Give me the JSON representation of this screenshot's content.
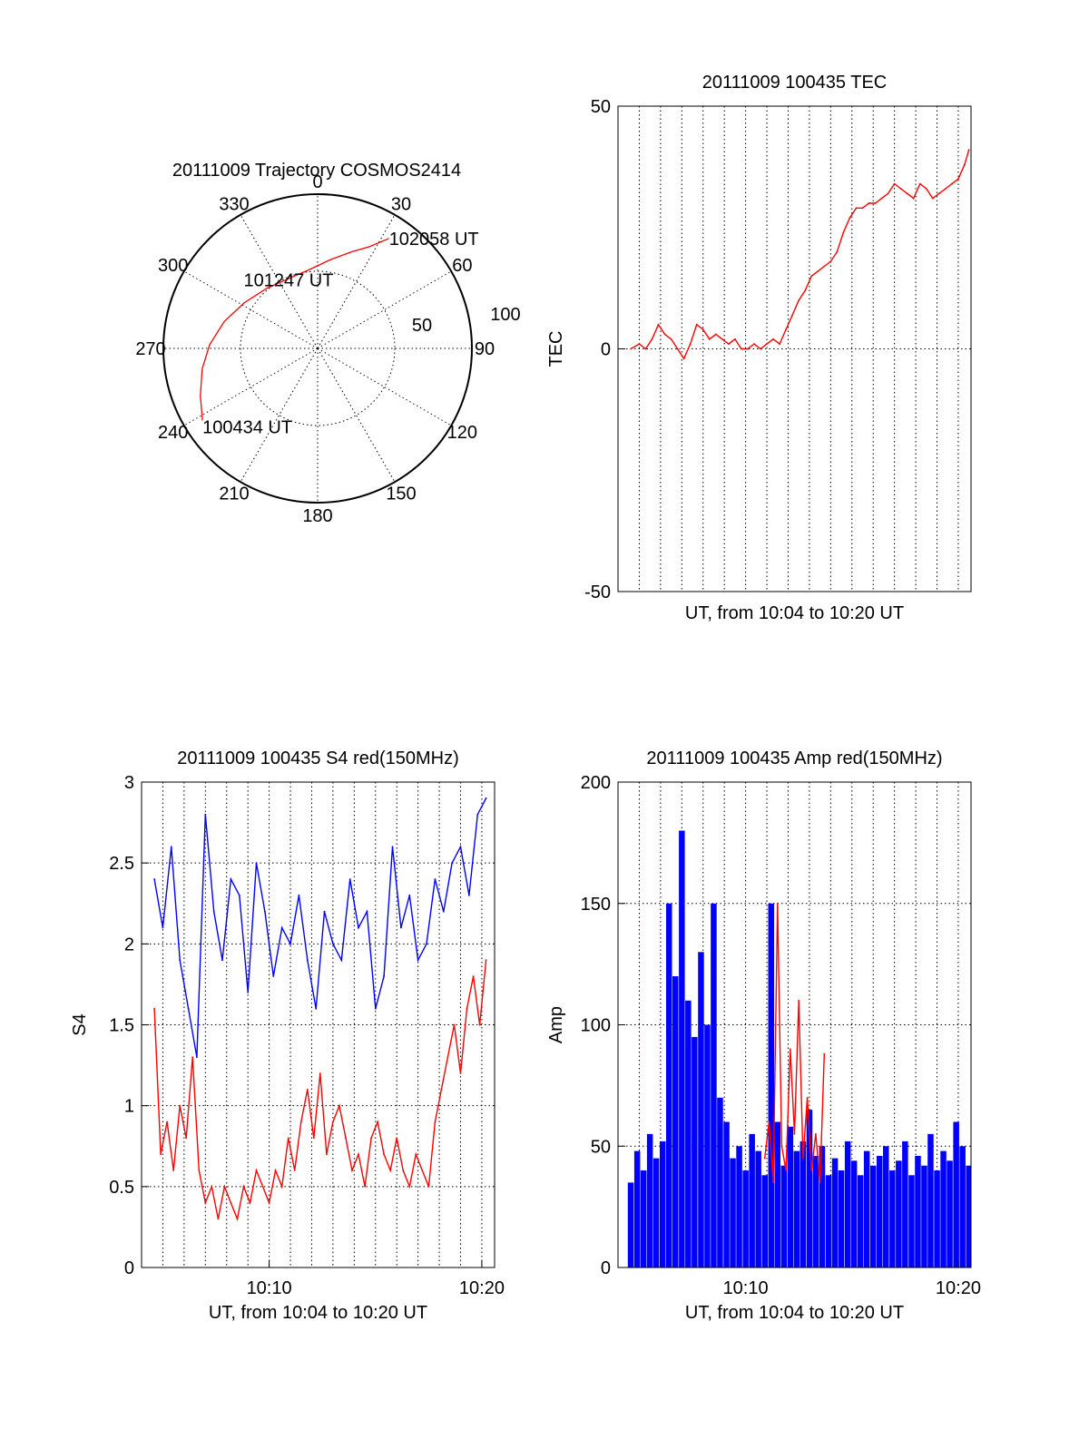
{
  "colors": {
    "primary": "#ff0000",
    "secondary": "#0000ff",
    "axis": "#000000",
    "grid": "#000000"
  },
  "chart_data": [
    {
      "id": "trajectory",
      "type": "polar",
      "title": "20111009 Trajectory COSMOS2414",
      "angle_labels": [
        "0",
        "30",
        "60",
        "90",
        "120",
        "150",
        "180",
        "210",
        "240",
        "270",
        "300",
        "330"
      ],
      "radial_labels": [
        "50",
        "100"
      ],
      "r_max": 100,
      "grid": true,
      "track": [
        {
          "az": 238,
          "r": 88
        },
        {
          "az": 248,
          "r": 82
        },
        {
          "az": 260,
          "r": 76
        },
        {
          "az": 272,
          "r": 70
        },
        {
          "az": 286,
          "r": 63
        },
        {
          "az": 302,
          "r": 56
        },
        {
          "az": 320,
          "r": 51
        },
        {
          "az": 337,
          "r": 49
        },
        {
          "az": 353,
          "r": 51
        },
        {
          "az": 8,
          "r": 58
        },
        {
          "az": 19,
          "r": 66
        },
        {
          "az": 27,
          "r": 74
        },
        {
          "az": 33,
          "r": 85
        }
      ],
      "track_labels": [
        {
          "text": "100434 UT",
          "az": 238,
          "r": 88
        },
        {
          "text": "101247 UT",
          "az": 342,
          "r": 41
        },
        {
          "text": "102058 UT",
          "az": 33,
          "r": 85
        }
      ]
    },
    {
      "id": "tec",
      "type": "line",
      "title": "20111009 100435 TEC",
      "xlabel": "UT, from 10:04 to 10:20 UT",
      "ylabel": "TEC",
      "xlim": [
        4.0,
        20.6
      ],
      "ylim": [
        -50,
        50
      ],
      "yticks": [
        "50",
        "0",
        "-50"
      ],
      "ytick_values": [
        50,
        0,
        -50
      ],
      "xticks": [],
      "grid": true,
      "series": [
        {
          "color": "primary",
          "x": [
            4.6,
            5.0,
            5.3,
            5.6,
            5.9,
            6.2,
            6.5,
            6.8,
            7.1,
            7.4,
            7.7,
            8.0,
            8.3,
            8.6,
            8.9,
            9.2,
            9.5,
            9.8,
            10.1,
            10.4,
            10.7,
            11.0,
            11.3,
            11.6,
            11.9,
            12.2,
            12.5,
            12.8,
            13.1,
            13.4,
            13.7,
            14.0,
            14.3,
            14.6,
            14.9,
            15.2,
            15.5,
            15.8,
            16.1,
            16.4,
            16.7,
            17.0,
            17.3,
            17.6,
            17.9,
            18.2,
            18.5,
            18.8,
            19.1,
            19.4,
            19.7,
            20.0,
            20.3,
            20.5
          ],
          "y": [
            0,
            1,
            0,
            2,
            5,
            3,
            2,
            0,
            -2,
            1,
            5,
            4,
            2,
            3,
            2,
            1,
            2,
            0,
            0,
            1,
            0,
            1,
            2,
            1,
            4,
            7,
            10,
            12,
            15,
            16,
            17,
            18,
            20,
            24,
            27,
            29,
            29,
            30,
            30,
            31,
            32,
            34,
            33,
            32,
            31,
            34,
            33,
            31,
            32,
            33,
            34,
            35,
            38,
            41
          ]
        }
      ]
    },
    {
      "id": "s4",
      "type": "line",
      "title": "20111009 100435 S4 red(150MHz)",
      "xlabel": "UT, from 10:04 to 10:20 UT",
      "ylabel": "S4",
      "xlim": [
        4.0,
        20.6
      ],
      "ylim": [
        0,
        3
      ],
      "yticks": [
        "3",
        "2.5",
        "2",
        "1.5",
        "1",
        "0.5",
        "0"
      ],
      "ytick_values": [
        3,
        2.5,
        2,
        1.5,
        1,
        0.5,
        0
      ],
      "xticks": [
        "10:10",
        "10:20"
      ],
      "xtick_values": [
        10,
        20
      ],
      "grid": true,
      "series": [
        {
          "color": "secondary",
          "x": [
            4.6,
            5.0,
            5.4,
            5.8,
            6.2,
            6.6,
            7.0,
            7.4,
            7.8,
            8.2,
            8.6,
            9.0,
            9.4,
            9.8,
            10.2,
            10.6,
            11.0,
            11.4,
            11.8,
            12.2,
            12.6,
            13.0,
            13.4,
            13.8,
            14.2,
            14.6,
            15.0,
            15.4,
            15.8,
            16.2,
            16.6,
            17.0,
            17.4,
            17.8,
            18.2,
            18.6,
            19.0,
            19.4,
            19.8,
            20.2
          ],
          "y": [
            2.4,
            2.1,
            2.6,
            1.9,
            1.6,
            1.3,
            2.8,
            2.2,
            1.9,
            2.4,
            2.3,
            1.7,
            2.5,
            2.2,
            1.8,
            2.1,
            2.0,
            2.3,
            1.9,
            1.6,
            2.2,
            2.0,
            1.9,
            2.4,
            2.1,
            2.2,
            1.6,
            1.8,
            2.6,
            2.1,
            2.3,
            1.9,
            2.0,
            2.4,
            2.2,
            2.5,
            2.6,
            2.3,
            2.8,
            2.9
          ]
        },
        {
          "color": "primary",
          "x": [
            4.6,
            4.9,
            5.2,
            5.5,
            5.8,
            6.1,
            6.4,
            6.7,
            7.0,
            7.3,
            7.6,
            7.9,
            8.2,
            8.5,
            8.8,
            9.1,
            9.4,
            9.7,
            10.0,
            10.3,
            10.6,
            10.9,
            11.2,
            11.5,
            11.8,
            12.1,
            12.4,
            12.7,
            13.0,
            13.3,
            13.6,
            13.9,
            14.2,
            14.5,
            14.8,
            15.1,
            15.4,
            15.7,
            16.0,
            16.3,
            16.6,
            16.9,
            17.2,
            17.5,
            17.8,
            18.1,
            18.4,
            18.7,
            19.0,
            19.3,
            19.6,
            19.9,
            20.2
          ],
          "y": [
            1.6,
            0.7,
            0.9,
            0.6,
            1.0,
            0.8,
            1.3,
            0.6,
            0.4,
            0.5,
            0.3,
            0.5,
            0.4,
            0.3,
            0.5,
            0.4,
            0.6,
            0.5,
            0.4,
            0.6,
            0.5,
            0.8,
            0.6,
            0.9,
            1.1,
            0.8,
            1.2,
            0.7,
            0.9,
            1.0,
            0.8,
            0.6,
            0.7,
            0.5,
            0.8,
            0.9,
            0.7,
            0.6,
            0.8,
            0.6,
            0.5,
            0.7,
            0.6,
            0.5,
            0.9,
            1.1,
            1.3,
            1.5,
            1.2,
            1.6,
            1.8,
            1.5,
            1.9
          ]
        }
      ]
    },
    {
      "id": "amp",
      "type": "line",
      "title": "20111009 100435 Amp red(150MHz)",
      "xlabel": "UT, from 10:04 to 10:20 UT",
      "ylabel": "Amp",
      "xlim": [
        4.0,
        20.6
      ],
      "ylim": [
        0,
        200
      ],
      "yticks": [
        "200",
        "150",
        "100",
        "50",
        "0"
      ],
      "ytick_values": [
        200,
        150,
        100,
        50,
        0
      ],
      "xticks": [
        "10:10",
        "10:20"
      ],
      "xtick_values": [
        10,
        20
      ],
      "grid": true,
      "series": [
        {
          "color": "secondary",
          "fill": true,
          "x": [
            4.6,
            4.9,
            5.2,
            5.5,
            5.8,
            6.1,
            6.4,
            6.7,
            7.0,
            7.3,
            7.6,
            7.9,
            8.2,
            8.5,
            8.8,
            9.1,
            9.4,
            9.7,
            10.0,
            10.3,
            10.6,
            10.9,
            11.2,
            11.5,
            11.8,
            12.1,
            12.4,
            12.7,
            13.0,
            13.3,
            13.6,
            13.9,
            14.2,
            14.5,
            14.8,
            15.1,
            15.4,
            15.7,
            16.0,
            16.3,
            16.6,
            16.9,
            17.2,
            17.5,
            17.8,
            18.1,
            18.4,
            18.7,
            19.0,
            19.3,
            19.6,
            19.9,
            20.2,
            20.5
          ],
          "y": [
            35,
            48,
            40,
            55,
            45,
            52,
            150,
            120,
            180,
            110,
            95,
            130,
            100,
            150,
            70,
            60,
            45,
            50,
            40,
            55,
            48,
            38,
            150,
            60,
            42,
            58,
            48,
            52,
            65,
            46,
            50,
            38,
            45,
            40,
            52,
            44,
            38,
            48,
            42,
            46,
            50,
            40,
            44,
            52,
            38,
            46,
            42,
            55,
            40,
            48,
            44,
            60,
            50,
            42
          ]
        },
        {
          "color": "primary",
          "x": [
            10.9,
            11.1,
            11.3,
            11.5,
            11.7,
            11.9,
            12.1,
            12.3,
            12.5,
            12.7,
            12.9,
            13.1,
            13.3,
            13.5,
            13.7
          ],
          "y": [
            45,
            60,
            35,
            150,
            50,
            40,
            90,
            55,
            110,
            45,
            70,
            40,
            55,
            35,
            88
          ]
        }
      ]
    }
  ]
}
